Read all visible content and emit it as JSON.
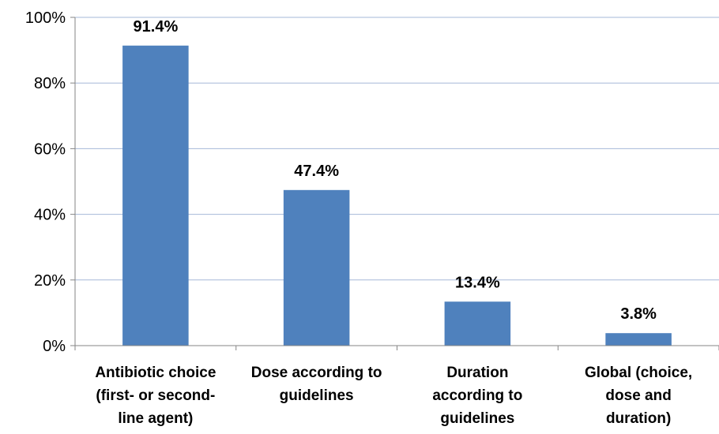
{
  "chart_data": {
    "type": "bar",
    "categories": [
      [
        "Antibiotic choice",
        "(first- or second-",
        "line agent)"
      ],
      [
        "Dose according to",
        "guidelines"
      ],
      [
        "Duration",
        "according to",
        "guidelines"
      ],
      [
        "Global (choice,",
        "dose and",
        "duration)"
      ]
    ],
    "values": [
      91.4,
      47.4,
      13.4,
      3.8
    ],
    "data_labels": [
      "91.4%",
      "47.4%",
      "13.4%",
      "3.8%"
    ],
    "ylim": [
      0,
      100
    ],
    "yticks": [
      0,
      20,
      40,
      60,
      80,
      100
    ],
    "ytick_labels": [
      "0%",
      "20%",
      "40%",
      "60%",
      "80%",
      "100%"
    ],
    "grid": true,
    "legend": "none",
    "bar_color": "#4f81bd",
    "grid_color": "#a6b8d8"
  }
}
